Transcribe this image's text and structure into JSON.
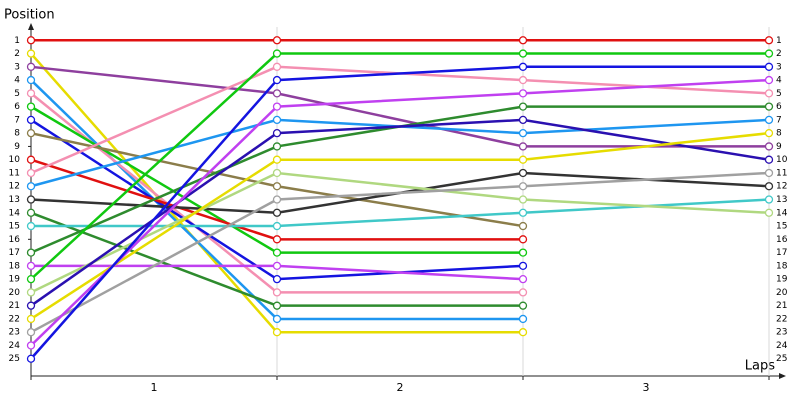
{
  "chart_data": {
    "type": "line",
    "y_label": "Position",
    "x_label": "Laps",
    "x": [
      0,
      1,
      2,
      3
    ],
    "xlim": [
      0,
      3
    ],
    "xticks": [
      {
        "value": 0.5,
        "label": "1"
      },
      {
        "value": 1.5,
        "label": "2"
      },
      {
        "value": 2.5,
        "label": "3"
      }
    ],
    "ylim": [
      0,
      26.3
    ],
    "y_inverted": true,
    "yticks": [
      1,
      2,
      3,
      4,
      5,
      6,
      7,
      8,
      9,
      10,
      11,
      12,
      13,
      14,
      15,
      16,
      17,
      18,
      19,
      20,
      21,
      22,
      23,
      24,
      25
    ],
    "grid": true,
    "series": [
      {
        "color": "#e01010",
        "values": [
          1,
          1,
          1,
          1
        ]
      },
      {
        "color": "#e6dc00",
        "values": [
          2,
          23,
          23,
          null
        ]
      },
      {
        "color": "#8e3f9e",
        "values": [
          3,
          5,
          9,
          9
        ]
      },
      {
        "color": "#1e96f0",
        "values": [
          4,
          22,
          22,
          null
        ]
      },
      {
        "color": "#f48fb1",
        "values": [
          5,
          20,
          20,
          null
        ]
      },
      {
        "color": "#10c810",
        "values": [
          6,
          17,
          17,
          null
        ]
      },
      {
        "color": "#1414e0",
        "values": [
          7,
          19,
          18,
          null
        ]
      },
      {
        "color": "#8b7d4a",
        "values": [
          8,
          12,
          15,
          null
        ]
      },
      {
        "color": "#e01010",
        "values": [
          10,
          16,
          16,
          null
        ]
      },
      {
        "color": "#f48fb1",
        "values": [
          11,
          3,
          4,
          5
        ]
      },
      {
        "color": "#1e96f0",
        "values": [
          12,
          7,
          8,
          7
        ]
      },
      {
        "color": "#333333",
        "values": [
          13,
          14,
          11,
          12
        ]
      },
      {
        "color": "#2e8b2e",
        "values": [
          14,
          21,
          21,
          null
        ]
      },
      {
        "color": "#40c8c8",
        "values": [
          15,
          15,
          14,
          13
        ]
      },
      {
        "color": "#2e8b2e",
        "values": [
          17,
          9,
          6,
          6
        ]
      },
      {
        "color": "#c040f0",
        "values": [
          18,
          18,
          19,
          null
        ]
      },
      {
        "color": "#10c810",
        "values": [
          19,
          2,
          2,
          2
        ]
      },
      {
        "color": "#b0d880",
        "values": [
          20,
          11,
          13,
          14
        ]
      },
      {
        "color": "#2a10b0",
        "values": [
          21,
          8,
          7,
          10
        ]
      },
      {
        "color": "#e6dc00",
        "values": [
          22,
          10,
          10,
          8
        ]
      },
      {
        "color": "#a0a0a0",
        "values": [
          23,
          13,
          12,
          11
        ]
      },
      {
        "color": "#c040f0",
        "values": [
          24,
          6,
          5,
          4
        ]
      },
      {
        "color": "#1414e0",
        "values": [
          25,
          4,
          3,
          3
        ]
      }
    ]
  }
}
